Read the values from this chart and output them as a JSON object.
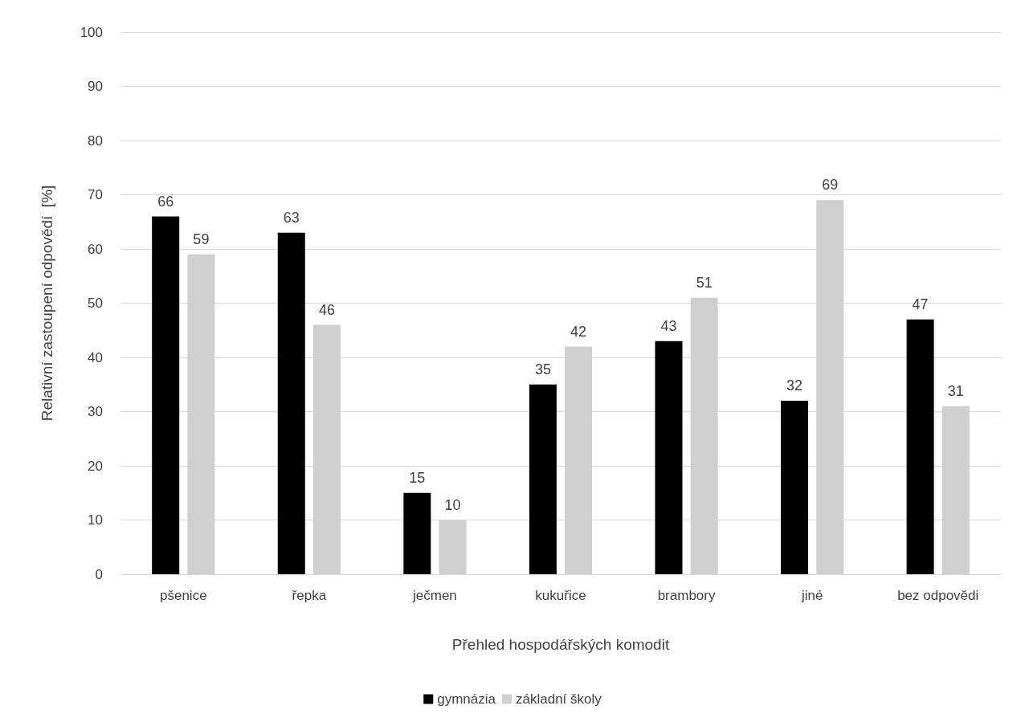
{
  "chart_data": {
    "type": "bar",
    "xlabel": "Přehled hospodářských komodit",
    "ylabel": "Relativní zastoupení odpovědí  [%]",
    "categories": [
      "pšenice",
      "řepka",
      "ječmen",
      "kukuřice",
      "brambory",
      "jiné",
      "bez odpovědi"
    ],
    "series": [
      {
        "name": "gymnázia",
        "color": "#000000",
        "values": [
          66,
          63,
          15,
          35,
          43,
          32,
          47
        ]
      },
      {
        "name": "základní školy",
        "color": "#d0cece",
        "values": [
          59,
          46,
          10,
          42,
          51,
          69,
          31
        ]
      }
    ],
    "ylim": [
      0,
      100
    ],
    "yticks": [
      0,
      10,
      20,
      30,
      40,
      50,
      60,
      70,
      80,
      90,
      100
    ],
    "grid": "y",
    "legend": "bottom",
    "data_labels": true
  }
}
